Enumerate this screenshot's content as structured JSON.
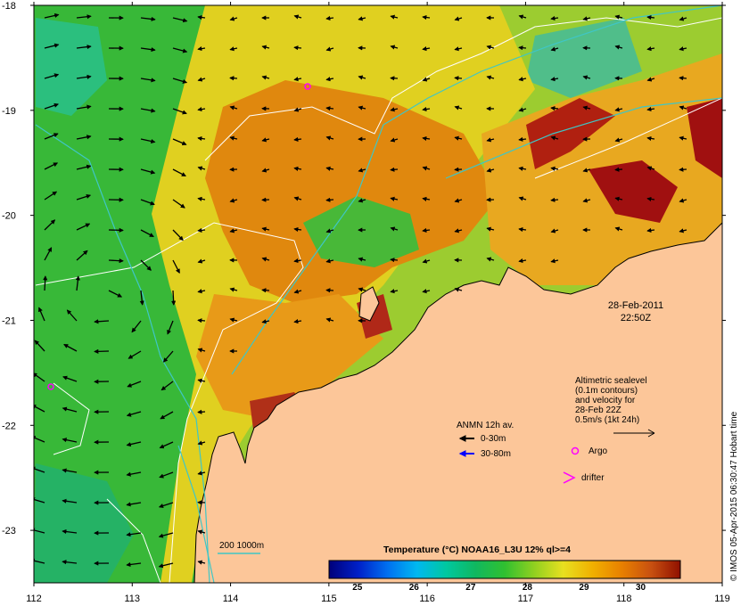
{
  "axes": {
    "lat_ticks": [
      "-18",
      "-19",
      "-20",
      "-21",
      "-22",
      "-23"
    ],
    "lon_ticks": [
      "112",
      "113",
      "114",
      "115",
      "116",
      "117",
      "118",
      "119"
    ],
    "lat_range": [
      -23.5,
      -18
    ],
    "lon_range": [
      112,
      119
    ]
  },
  "timestamp": {
    "date": "28-Feb-2011",
    "time": "22:50Z"
  },
  "altimetry_note": {
    "lines": [
      "Altimetric sealevel",
      "(0.1m contours)",
      "and velocity for",
      "28-Feb 22Z",
      "0.5m/s (1kt 24h)"
    ]
  },
  "current_legend": {
    "title": "ANMN 12h av.",
    "item_shallow": "0-30m",
    "item_deep": "30-80m",
    "shallow_color": "#000000",
    "deep_color": "#0000ff"
  },
  "markers": {
    "argo_label": "Argo",
    "drifter_label": "drifter",
    "argo_color": "#ff00ff",
    "drifter_color": "#ff00ff"
  },
  "isobath_legend": {
    "label": "200  1000m",
    "color": "#3fc6c6"
  },
  "colorbar": {
    "title": "Temperature (°C) NOAA16_L3U 12% ql>=4",
    "ticks": [
      "25",
      "26",
      "27",
      "28",
      "29",
      "30"
    ],
    "range": [
      24.5,
      30.7
    ],
    "stops": [
      "#00007a",
      "#0020c8",
      "#0070f0",
      "#00b8f0",
      "#00c8a0",
      "#10b860",
      "#30c030",
      "#90d020",
      "#e8e020",
      "#f0b000",
      "#e88000",
      "#c85010",
      "#901000"
    ]
  },
  "credit": "© IMOS 05-Apr-2015 06:30:47 Hobart time",
  "colors": {
    "land": "#fcc699",
    "warm_water": "#e08a10",
    "hot_water": "#a01010",
    "cool_water": "#33b033",
    "cold_water": "#10b8c8",
    "contour": "#ffffff",
    "isobath": "#3fc6c6"
  }
}
